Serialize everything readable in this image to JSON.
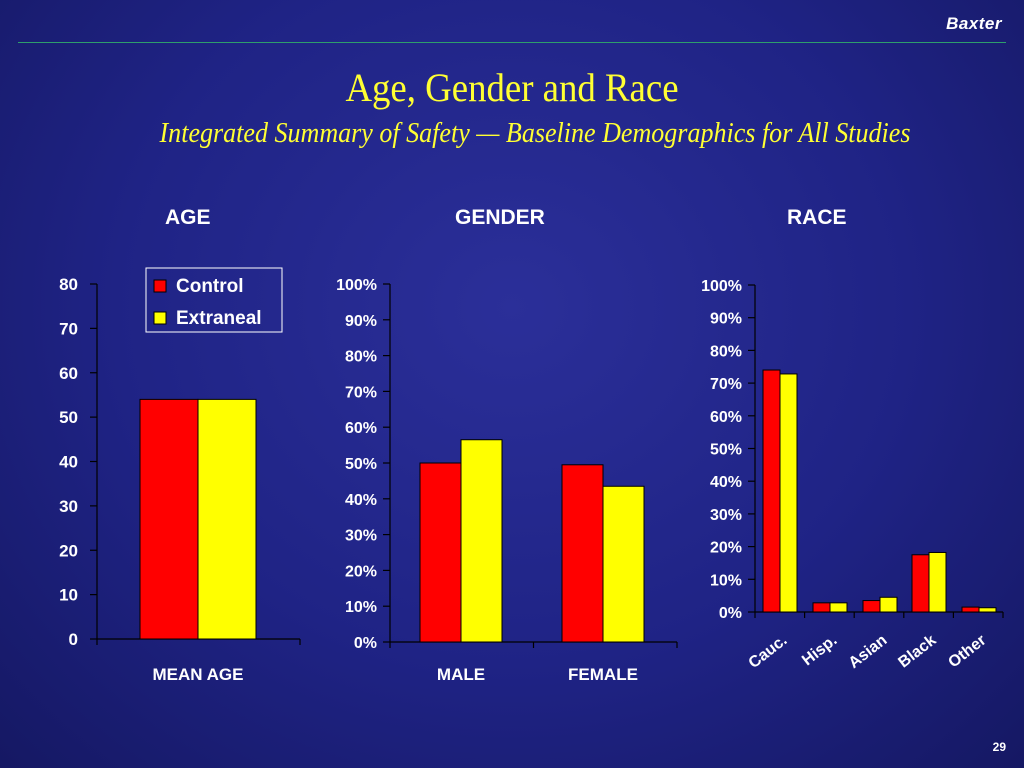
{
  "brand": "Baxter",
  "title": "Age, Gender and Race",
  "subtitle": "Integrated Summary of Safety — Baseline Demographics for All Studies",
  "page_number": "29",
  "colors": {
    "control": "#ff0000",
    "extraneal": "#ffff00",
    "background": "#2228a0",
    "title": "#ffff33"
  },
  "legend": {
    "items": [
      "Control",
      "Extraneal"
    ]
  },
  "chart_data": [
    {
      "type": "bar",
      "title": "AGE",
      "categories": [
        "MEAN AGE"
      ],
      "series": [
        {
          "name": "Control",
          "values": [
            54
          ]
        },
        {
          "name": "Extraneal",
          "values": [
            54
          ]
        }
      ],
      "ylim": [
        0,
        80
      ],
      "yticks": [
        "0",
        "10",
        "20",
        "30",
        "40",
        "50",
        "60",
        "70",
        "80"
      ],
      "legend_position": "top-right"
    },
    {
      "type": "bar",
      "title": "GENDER",
      "categories": [
        "MALE",
        "FEMALE"
      ],
      "series": [
        {
          "name": "Control",
          "values": [
            50,
            49.5
          ]
        },
        {
          "name": "Extraneal",
          "values": [
            56.5,
            43.5
          ]
        }
      ],
      "ylim": [
        0,
        100
      ],
      "yticks": [
        "0%",
        "10%",
        "20%",
        "30%",
        "40%",
        "50%",
        "60%",
        "70%",
        "80%",
        "90%",
        "100%"
      ]
    },
    {
      "type": "bar",
      "title": "RACE",
      "categories": [
        "Cauc.",
        "Hisp.",
        "Asian",
        "Black",
        "Other"
      ],
      "series": [
        {
          "name": "Control",
          "values": [
            74,
            2.8,
            3.5,
            17.5,
            1.5
          ]
        },
        {
          "name": "Extraneal",
          "values": [
            72.8,
            2.8,
            4.5,
            18.2,
            1.3
          ]
        }
      ],
      "ylim": [
        0,
        100
      ],
      "yticks": [
        "0%",
        "10%",
        "20%",
        "30%",
        "40%",
        "50%",
        "60%",
        "70%",
        "80%",
        "90%",
        "100%"
      ]
    }
  ]
}
